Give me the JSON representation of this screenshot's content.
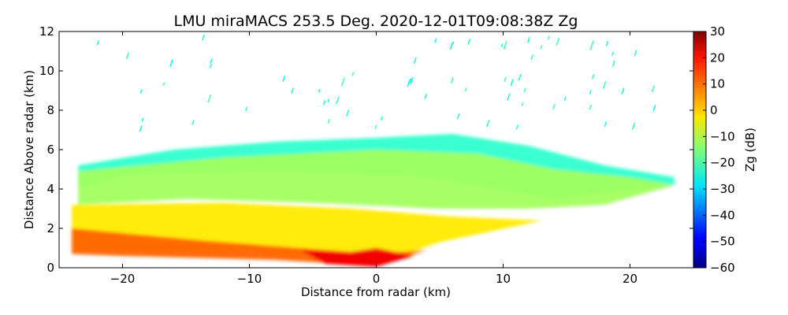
{
  "chart_data": {
    "type": "heatmap",
    "title": "LMU miraMACS 253.5 Deg. 2020-12-01T09:08:38Z  Zg",
    "xlabel": "Distance from radar (km)",
    "ylabel": "Distance Above radar  (km)",
    "xlim": [
      -25,
      25
    ],
    "ylim": [
      0,
      12
    ],
    "xticks": [
      -20,
      -10,
      0,
      10,
      20
    ],
    "xtick_labels": [
      "−20",
      "−10",
      "0",
      "10",
      "20"
    ],
    "yticks": [
      0,
      2,
      4,
      6,
      8,
      10,
      12
    ],
    "ytick_labels": [
      "0",
      "2",
      "4",
      "6",
      "8",
      "10",
      "12"
    ],
    "colorbar": {
      "label": "Zg (dB)",
      "range": [
        -60,
        30
      ],
      "colormap": "jet",
      "ticks": [
        30,
        20,
        10,
        0,
        -10,
        -20,
        -30,
        -40,
        -50,
        -60
      ],
      "tick_labels": [
        "30",
        "20",
        "10",
        "0",
        "−10",
        "−20",
        "−30",
        "−40",
        "−50",
        "−60"
      ]
    },
    "grid": false,
    "scan_azimuth_deg": 253.5,
    "cloud_regions_km": [
      {
        "name": "echo-top-layer",
        "zg_dB": -22,
        "polygon": [
          [
            -23.5,
            5.2
          ],
          [
            -16,
            6.0
          ],
          [
            -8,
            6.4
          ],
          [
            0,
            6.6
          ],
          [
            6,
            6.8
          ],
          [
            12,
            6.2
          ],
          [
            18,
            5.2
          ],
          [
            23.5,
            4.6
          ],
          [
            23.5,
            4.2
          ],
          [
            14,
            3.5
          ],
          [
            4,
            4.6
          ],
          [
            -8,
            4.9
          ],
          [
            -20,
            4.7
          ],
          [
            -23.5,
            4.0
          ]
        ]
      },
      {
        "name": "mid-level-cloud",
        "zg_dB": -12,
        "polygon": [
          [
            -23.5,
            4.9
          ],
          [
            -12,
            5.6
          ],
          [
            0,
            6.0
          ],
          [
            8,
            5.8
          ],
          [
            14,
            5.0
          ],
          [
            20,
            4.6
          ],
          [
            23.5,
            4.2
          ],
          [
            18,
            3.2
          ],
          [
            12,
            3.0
          ],
          [
            5,
            3.0
          ],
          [
            -5,
            3.3
          ],
          [
            -15,
            3.5
          ],
          [
            -23.5,
            3.2
          ]
        ]
      },
      {
        "name": "low-level-precipitation",
        "zg_dB": -2,
        "polygon": [
          [
            -24,
            3.2
          ],
          [
            -12,
            3.3
          ],
          [
            -2,
            3.0
          ],
          [
            6,
            2.6
          ],
          [
            13,
            2.4
          ],
          [
            16,
            2.8
          ],
          [
            5,
            1.3
          ],
          [
            0,
            0.2
          ],
          [
            -10,
            0.8
          ],
          [
            -24,
            0.9
          ]
        ]
      },
      {
        "name": "near-surface-rain",
        "zg_dB": 10,
        "polygon": [
          [
            -24,
            2.0
          ],
          [
            -14,
            1.4
          ],
          [
            -6,
            1.0
          ],
          [
            0,
            0.7
          ],
          [
            4,
            0.9
          ],
          [
            0,
            0.1
          ],
          [
            -8,
            0.4
          ],
          [
            -20,
            0.6
          ],
          [
            -24,
            0.7
          ]
        ]
      },
      {
        "name": "rain-core-at-radar",
        "zg_dB": 20,
        "polygon": [
          [
            -6,
            0.9
          ],
          [
            -2,
            0.8
          ],
          [
            0,
            1.0
          ],
          [
            3,
            0.6
          ],
          [
            0,
            0.05
          ],
          [
            -4,
            0.2
          ]
        ]
      }
    ]
  }
}
